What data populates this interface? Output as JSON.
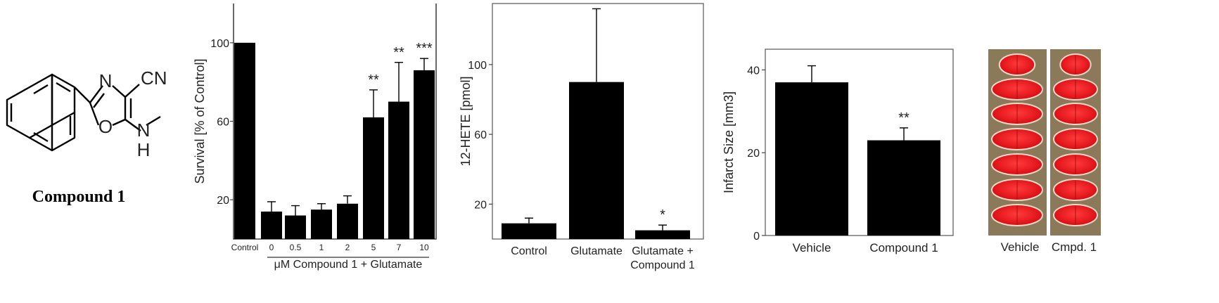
{
  "structure": {
    "caption": "Compound 1",
    "atoms": {
      "n": "N",
      "o": "O",
      "cn": "CN",
      "nh_n": "N",
      "nh_h": "H"
    }
  },
  "chart_data": [
    {
      "type": "bar",
      "ylabel": "Survival [% of Control]",
      "xlabel": "μM Compound 1 + Glutamate",
      "ylim": [
        0,
        120
      ],
      "yticks": [
        20,
        60,
        100
      ],
      "categories": [
        "Control",
        "0",
        "0.5",
        "1",
        "2",
        "5",
        "7",
        "10"
      ],
      "values": [
        100,
        14,
        12,
        15,
        18,
        62,
        70,
        86
      ],
      "errors": [
        0,
        5,
        5,
        3,
        4,
        14,
        20,
        6
      ],
      "significance": [
        "",
        "",
        "",
        "",
        "",
        "**",
        "**",
        "***"
      ],
      "color": "#000000"
    },
    {
      "type": "bar",
      "ylabel": "12-HETE [pmol]",
      "ylim": [
        0,
        135
      ],
      "yticks": [
        20,
        60,
        100
      ],
      "categories": [
        "Control",
        "Glutamate",
        "Glutamate +\nCompound 1"
      ],
      "values": [
        9,
        90,
        5
      ],
      "errors": [
        3,
        42,
        3
      ],
      "significance": [
        "",
        "",
        "*"
      ],
      "color": "#000000"
    },
    {
      "type": "bar",
      "ylabel": "Infarct Size [mm3]",
      "ylim": [
        0,
        45
      ],
      "yticks": [
        0,
        20,
        40
      ],
      "categories": [
        "Vehicle",
        "Compound 1"
      ],
      "values": [
        37,
        23
      ],
      "errors": [
        4,
        3
      ],
      "significance": [
        "",
        "**"
      ],
      "color": "#000000"
    }
  ],
  "brain_panel": {
    "labels": [
      "Vehicle",
      "Cmpd. 1"
    ]
  }
}
